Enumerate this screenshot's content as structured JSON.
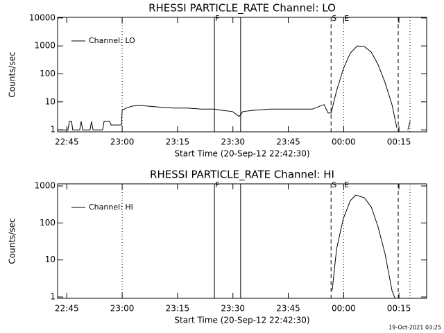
{
  "chart_data": [
    {
      "type": "line",
      "title": "RHESSI PARTICLE_RATE Channel: LO",
      "xlabel": "Start Time (20-Sep-12 22:42:30)",
      "ylabel": "Counts/sec",
      "log_y": true,
      "legend": "upper left",
      "xlim": [
        0,
        100
      ],
      "ylim": [
        0.85,
        10500
      ],
      "xticks": [
        {
          "value": 2.5,
          "label": "22:45"
        },
        {
          "value": 17.5,
          "label": "23:00"
        },
        {
          "value": 32.5,
          "label": "23:15"
        },
        {
          "value": 47.5,
          "label": "23:30"
        },
        {
          "value": 62.5,
          "label": "23:45"
        },
        {
          "value": 77.5,
          "label": "00:00"
        },
        {
          "value": 92.5,
          "label": "00:15"
        }
      ],
      "yticks": [
        1,
        10,
        100,
        1000,
        10000
      ],
      "markers": [
        {
          "x": 42.5,
          "style": "solid",
          "label": "F"
        },
        {
          "x": 49.6,
          "style": "solid"
        },
        {
          "x": 17.5,
          "style": "dotted"
        },
        {
          "x": 77.5,
          "style": "dotted",
          "label": "E"
        },
        {
          "x": 95.5,
          "style": "dotted"
        },
        {
          "x": 74.1,
          "style": "dashed",
          "label": "S"
        },
        {
          "x": 92.3,
          "style": "dashed"
        }
      ],
      "series": [
        {
          "name": "Channel: LO",
          "color": "#000000",
          "x": [
            0,
            2.8,
            3.2,
            3.8,
            4.1,
            6.0,
            6.4,
            6.8,
            8.8,
            9.2,
            9.6,
            12.2,
            12.6,
            14.1,
            14.5,
            17.3,
            17.5,
            18.6,
            20.1,
            22.0,
            24.8,
            27.6,
            31.4,
            35.2,
            38.9,
            42.5,
            44.5,
            47.4,
            49.2,
            50.2,
            53.0,
            57.7,
            63.3,
            69.0,
            72.2,
            73.3,
            74.1,
            75.6,
            77.4,
            79.3,
            81.2,
            83.1,
            85.0,
            86.8,
            88.7,
            90.6,
            91.9,
            93.5,
            94.9,
            95.5
          ],
          "values": [
            1,
            1,
            2,
            2,
            1,
            1,
            2,
            1,
            1,
            2,
            1,
            1,
            2,
            2,
            1.5,
            1.5,
            5,
            6,
            7,
            7.5,
            7,
            6.5,
            6,
            6,
            5.5,
            5.5,
            5,
            4.5,
            3,
            4.5,
            5,
            5.5,
            5.5,
            5.5,
            8,
            4,
            4,
            25,
            150,
            550,
            1000,
            950,
            600,
            220,
            50,
            8,
            1.2,
            null,
            1,
            2
          ]
        }
      ]
    },
    {
      "type": "line",
      "title": "RHESSI PARTICLE_RATE Channel: HI",
      "xlabel": "Start Time (20-Sep-12 22:42:30)",
      "ylabel": "Counts/sec",
      "log_y": true,
      "legend": "upper left",
      "xlim": [
        0,
        100
      ],
      "ylim": [
        0.92,
        1140
      ],
      "xticks": [
        {
          "value": 2.5,
          "label": "22:45"
        },
        {
          "value": 17.5,
          "label": "23:00"
        },
        {
          "value": 32.5,
          "label": "23:15"
        },
        {
          "value": 47.5,
          "label": "23:30"
        },
        {
          "value": 62.5,
          "label": "23:45"
        },
        {
          "value": 77.5,
          "label": "00:00"
        },
        {
          "value": 92.5,
          "label": "00:15"
        }
      ],
      "yticks": [
        1,
        10,
        100,
        1000
      ],
      "markers": [
        {
          "x": 42.5,
          "style": "solid",
          "label": "F"
        },
        {
          "x": 49.6,
          "style": "solid"
        },
        {
          "x": 17.5,
          "style": "dotted"
        },
        {
          "x": 77.5,
          "style": "dotted",
          "label": "E"
        },
        {
          "x": 95.5,
          "style": "dotted"
        },
        {
          "x": 74.1,
          "style": "dashed",
          "label": "S"
        },
        {
          "x": 92.3,
          "style": "dashed"
        }
      ],
      "series": [
        {
          "name": "Channel: HI",
          "color": "#000000",
          "x": [
            74.4,
            75.6,
            77.4,
            79.3,
            80.8,
            83.1,
            85.0,
            86.8,
            88.7,
            90.6,
            91.4
          ],
          "values": [
            1.5,
            20,
            130,
            400,
            570,
            480,
            270,
            80,
            15,
            1.5,
            0.95
          ]
        }
      ]
    }
  ],
  "timestamp": "19-Oct-2021 03:25"
}
